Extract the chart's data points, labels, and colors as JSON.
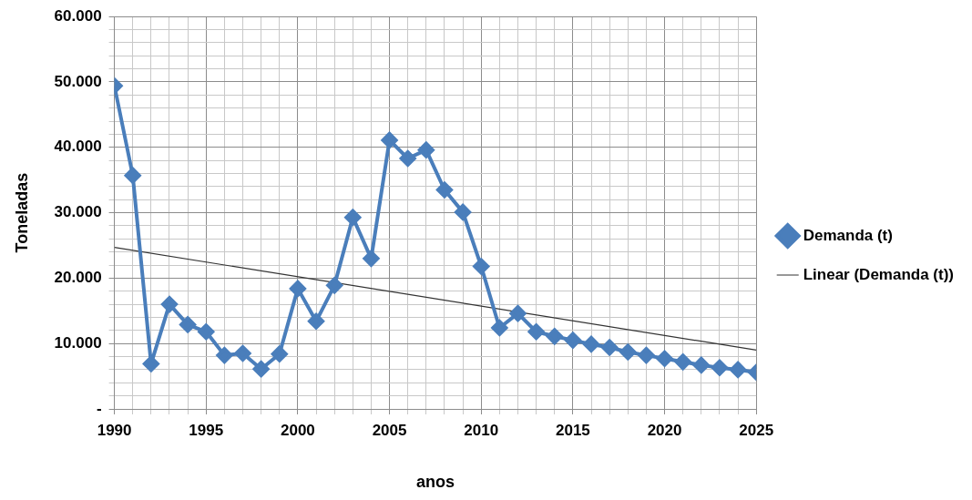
{
  "chart_data": {
    "type": "line",
    "xlabel": "anos",
    "ylabel": "Toneladas",
    "x": [
      1990,
      1991,
      1992,
      1993,
      1994,
      1995,
      1996,
      1997,
      1998,
      1999,
      2000,
      2001,
      2002,
      2003,
      2004,
      2005,
      2006,
      2007,
      2008,
      2009,
      2010,
      2011,
      2012,
      2013,
      2014,
      2015,
      2016,
      2017,
      2018,
      2019,
      2020,
      2021,
      2022,
      2023,
      2024,
      2025
    ],
    "series": [
      {
        "name": "Demanda (t)",
        "color": "#4a7ebb",
        "marker": "diamond",
        "values": [
          49400,
          35700,
          6900,
          16000,
          12900,
          11800,
          8200,
          8500,
          6100,
          8400,
          18400,
          13400,
          18900,
          29300,
          23000,
          41100,
          38300,
          39600,
          33500,
          30100,
          21800,
          12400,
          14600,
          11800,
          11100,
          10500,
          9900,
          9400,
          8700,
          8200,
          7700,
          7200,
          6700,
          6300,
          6000,
          5600
        ]
      },
      {
        "name": "Linear (Demanda (t))",
        "type": "line",
        "color": "#333333",
        "marker": "none",
        "x": [
          1990,
          2025
        ],
        "values": [
          24700,
          9000
        ]
      }
    ],
    "xlim": [
      1990,
      2025
    ],
    "xticks": [
      1990,
      {
        "value": 1991,
        "label": null
      },
      {
        "value": 1992,
        "label": null
      },
      {
        "value": 1993,
        "label": null
      },
      {
        "value": 1994,
        "label": null
      },
      1995,
      {
        "value": 1996,
        "label": null
      },
      {
        "value": 1997,
        "label": null
      },
      {
        "value": 1998,
        "label": null
      },
      {
        "value": 1999,
        "label": null
      },
      2000,
      {
        "value": 2001,
        "label": null
      },
      {
        "value": 2002,
        "label": null
      },
      {
        "value": 2003,
        "label": null
      },
      {
        "value": 2004,
        "label": null
      },
      2005,
      {
        "value": 2006,
        "label": null
      },
      {
        "value": 2007,
        "label": null
      },
      {
        "value": 2008,
        "label": null
      },
      {
        "value": 2009,
        "label": null
      },
      2010,
      {
        "value": 2011,
        "label": null
      },
      {
        "value": 2012,
        "label": null
      },
      {
        "value": 2013,
        "label": null
      },
      {
        "value": 2014,
        "label": null
      },
      2015,
      {
        "value": 2016,
        "label": null
      },
      {
        "value": 2017,
        "label": null
      },
      {
        "value": 2018,
        "label": null
      },
      {
        "value": 2019,
        "label": null
      },
      2020,
      {
        "value": 2021,
        "label": null
      },
      {
        "value": 2022,
        "label": null
      },
      {
        "value": 2023,
        "label": null
      },
      {
        "value": 2024,
        "label": null
      },
      2025
    ],
    "ylim": [
      0,
      60000
    ],
    "yticks": [
      {
        "value": 0,
        "label": "-"
      },
      {
        "value": 2000,
        "label": null
      },
      {
        "value": 4000,
        "label": null
      },
      {
        "value": 6000,
        "label": null
      },
      {
        "value": 8000,
        "label": null
      },
      {
        "value": 10000,
        "label": "10.000"
      },
      {
        "value": 12000,
        "label": null
      },
      {
        "value": 14000,
        "label": null
      },
      {
        "value": 16000,
        "label": null
      },
      {
        "value": 18000,
        "label": null
      },
      {
        "value": 20000,
        "label": "20.000"
      },
      {
        "value": 22000,
        "label": null
      },
      {
        "value": 24000,
        "label": null
      },
      {
        "value": 26000,
        "label": null
      },
      {
        "value": 28000,
        "label": null
      },
      {
        "value": 30000,
        "label": "30.000"
      },
      {
        "value": 32000,
        "label": null
      },
      {
        "value": 34000,
        "label": null
      },
      {
        "value": 36000,
        "label": null
      },
      {
        "value": 38000,
        "label": null
      },
      {
        "value": 40000,
        "label": "40.000"
      },
      {
        "value": 42000,
        "label": null
      },
      {
        "value": 44000,
        "label": null
      },
      {
        "value": 46000,
        "label": null
      },
      {
        "value": 48000,
        "label": null
      },
      {
        "value": 50000,
        "label": "50.000"
      },
      {
        "value": 52000,
        "label": null
      },
      {
        "value": 54000,
        "label": null
      },
      {
        "value": 56000,
        "label": null
      },
      {
        "value": 58000,
        "label": null
      },
      {
        "value": 60000,
        "label": "60.000"
      }
    ],
    "grid": true,
    "legend": "right"
  }
}
